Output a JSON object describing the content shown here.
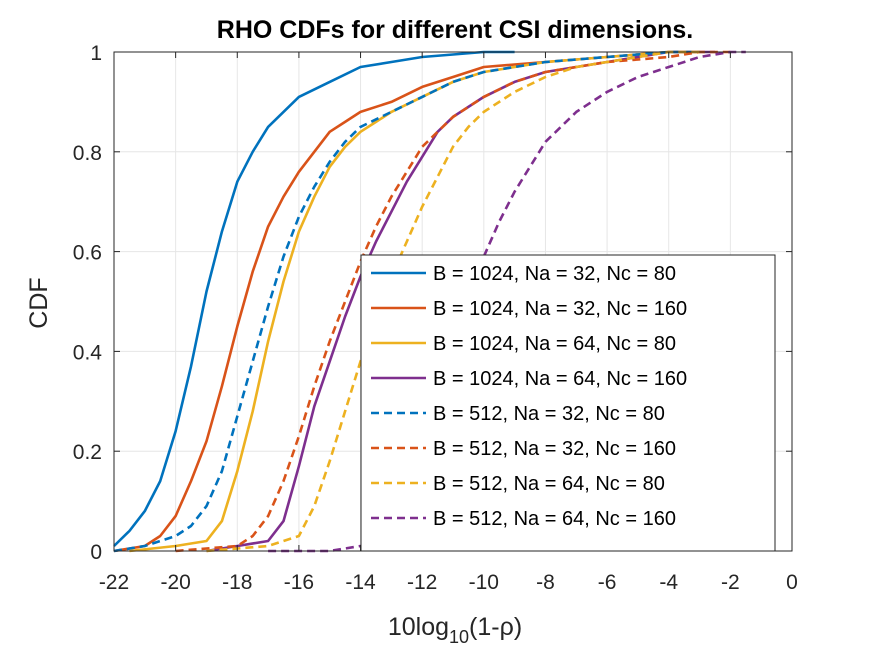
{
  "chart_data": {
    "type": "line",
    "title": "RHO CDFs for different CSI dimensions.",
    "xlabel": {
      "prefix": "10log",
      "sub": "10",
      "suffix": "(1-ρ)"
    },
    "ylabel": "CDF",
    "xlim": [
      -22,
      0
    ],
    "ylim": [
      0,
      1
    ],
    "xticks": [
      -22,
      -20,
      -18,
      -16,
      -14,
      -12,
      -10,
      -8,
      -6,
      -4,
      -2,
      0
    ],
    "xtick_labels": [
      "-22",
      "-20",
      "-18",
      "-16",
      "-14",
      "-12",
      "-10",
      "-8",
      "-6",
      "-4",
      "-2",
      "0"
    ],
    "yticks": [
      0,
      0.2,
      0.4,
      0.6,
      0.8,
      1
    ],
    "ytick_labels": [
      "0",
      "0.2",
      "0.4",
      "0.6",
      "0.8",
      "1"
    ],
    "grid": true,
    "legend_position": "center-right",
    "series": [
      {
        "name": "B = 1024, Na = 32, Nc = 80",
        "color": "#0072BD",
        "dash": "solid",
        "points": [
          [
            -22,
            0.01
          ],
          [
            -21.5,
            0.04
          ],
          [
            -21,
            0.08
          ],
          [
            -20.5,
            0.14
          ],
          [
            -20,
            0.24
          ],
          [
            -19.5,
            0.37
          ],
          [
            -19,
            0.52
          ],
          [
            -18.5,
            0.64
          ],
          [
            -18,
            0.74
          ],
          [
            -17.5,
            0.8
          ],
          [
            -17,
            0.85
          ],
          [
            -16.5,
            0.88
          ],
          [
            -16,
            0.91
          ],
          [
            -15,
            0.94
          ],
          [
            -14,
            0.97
          ],
          [
            -13,
            0.98
          ],
          [
            -12,
            0.99
          ],
          [
            -10,
            1.0
          ],
          [
            -9,
            1.0
          ]
        ]
      },
      {
        "name": "B = 1024, Na = 32, Nc = 160",
        "color": "#D95319",
        "dash": "solid",
        "points": [
          [
            -22,
            0.0
          ],
          [
            -21,
            0.01
          ],
          [
            -20.5,
            0.03
          ],
          [
            -20,
            0.07
          ],
          [
            -19.5,
            0.14
          ],
          [
            -19,
            0.22
          ],
          [
            -18.5,
            0.33
          ],
          [
            -18,
            0.45
          ],
          [
            -17.5,
            0.56
          ],
          [
            -17,
            0.65
          ],
          [
            -16.5,
            0.71
          ],
          [
            -16,
            0.76
          ],
          [
            -15.5,
            0.8
          ],
          [
            -15,
            0.84
          ],
          [
            -14.5,
            0.86
          ],
          [
            -14,
            0.88
          ],
          [
            -13,
            0.9
          ],
          [
            -12,
            0.93
          ],
          [
            -11,
            0.95
          ],
          [
            -10,
            0.97
          ],
          [
            -8,
            0.98
          ],
          [
            -6,
            0.99
          ],
          [
            -4,
            1.0
          ],
          [
            -3,
            1.0
          ]
        ]
      },
      {
        "name": "B = 1024, Na = 64, Nc = 80",
        "color": "#EDB120",
        "dash": "solid",
        "points": [
          [
            -21.5,
            0.0
          ],
          [
            -20,
            0.01
          ],
          [
            -19,
            0.02
          ],
          [
            -18.5,
            0.06
          ],
          [
            -18,
            0.16
          ],
          [
            -17.5,
            0.28
          ],
          [
            -17,
            0.42
          ],
          [
            -16.5,
            0.54
          ],
          [
            -16,
            0.64
          ],
          [
            -15.5,
            0.71
          ],
          [
            -15,
            0.77
          ],
          [
            -14.5,
            0.81
          ],
          [
            -14,
            0.84
          ],
          [
            -13.5,
            0.86
          ],
          [
            -13,
            0.88
          ],
          [
            -12,
            0.91
          ],
          [
            -11,
            0.94
          ],
          [
            -10,
            0.96
          ],
          [
            -8,
            0.98
          ],
          [
            -6,
            0.99
          ],
          [
            -4,
            1.0
          ],
          [
            -3,
            1.0
          ]
        ]
      },
      {
        "name": "B = 1024, Na = 64, Nc = 160",
        "color": "#7E2F8E",
        "dash": "solid",
        "points": [
          [
            -19,
            0.0
          ],
          [
            -18,
            0.01
          ],
          [
            -17,
            0.02
          ],
          [
            -16.5,
            0.06
          ],
          [
            -16,
            0.17
          ],
          [
            -15.5,
            0.29
          ],
          [
            -15,
            0.38
          ],
          [
            -14.5,
            0.47
          ],
          [
            -14,
            0.55
          ],
          [
            -13.5,
            0.62
          ],
          [
            -13,
            0.68
          ],
          [
            -12.5,
            0.74
          ],
          [
            -12,
            0.79
          ],
          [
            -11.5,
            0.84
          ],
          [
            -11,
            0.87
          ],
          [
            -10.5,
            0.89
          ],
          [
            -10,
            0.91
          ],
          [
            -9,
            0.94
          ],
          [
            -8,
            0.96
          ],
          [
            -7,
            0.97
          ],
          [
            -6,
            0.98
          ],
          [
            -5,
            0.99
          ],
          [
            -4,
            1.0
          ],
          [
            -2.5,
            1.0
          ]
        ]
      },
      {
        "name": "B = 512, Na = 32, Nc = 80",
        "color": "#0072BD",
        "dash": "dashed",
        "points": [
          [
            -22,
            0.0
          ],
          [
            -21,
            0.01
          ],
          [
            -20,
            0.03
          ],
          [
            -19.5,
            0.05
          ],
          [
            -19,
            0.09
          ],
          [
            -18.5,
            0.16
          ],
          [
            -18,
            0.27
          ],
          [
            -17.5,
            0.38
          ],
          [
            -17,
            0.49
          ],
          [
            -16.5,
            0.59
          ],
          [
            -16,
            0.67
          ],
          [
            -15.5,
            0.73
          ],
          [
            -15,
            0.78
          ],
          [
            -14.5,
            0.82
          ],
          [
            -14,
            0.85
          ],
          [
            -13,
            0.88
          ],
          [
            -12,
            0.91
          ],
          [
            -11,
            0.94
          ],
          [
            -10,
            0.96
          ],
          [
            -8,
            0.98
          ],
          [
            -6,
            0.99
          ],
          [
            -4,
            1.0
          ],
          [
            -3,
            1.0
          ]
        ]
      },
      {
        "name": "B = 512, Na = 32, Nc = 160",
        "color": "#D95319",
        "dash": "dashed",
        "points": [
          [
            -20,
            0.0
          ],
          [
            -18,
            0.01
          ],
          [
            -17.5,
            0.03
          ],
          [
            -17,
            0.07
          ],
          [
            -16.5,
            0.14
          ],
          [
            -16,
            0.23
          ],
          [
            -15.5,
            0.33
          ],
          [
            -15,
            0.42
          ],
          [
            -14.5,
            0.5
          ],
          [
            -14,
            0.58
          ],
          [
            -13.5,
            0.65
          ],
          [
            -13,
            0.71
          ],
          [
            -12.5,
            0.76
          ],
          [
            -12,
            0.81
          ],
          [
            -11,
            0.87
          ],
          [
            -10,
            0.91
          ],
          [
            -9,
            0.94
          ],
          [
            -8,
            0.96
          ],
          [
            -6,
            0.98
          ],
          [
            -4,
            0.99
          ],
          [
            -3,
            1.0
          ],
          [
            -2,
            1.0
          ]
        ]
      },
      {
        "name": "B = 512, Na = 64, Nc = 80",
        "color": "#EDB120",
        "dash": "dashed",
        "points": [
          [
            -19,
            0.0
          ],
          [
            -17,
            0.01
          ],
          [
            -16,
            0.03
          ],
          [
            -15.5,
            0.09
          ],
          [
            -15,
            0.18
          ],
          [
            -14.5,
            0.28
          ],
          [
            -14,
            0.38
          ],
          [
            -13.5,
            0.47
          ],
          [
            -13,
            0.55
          ],
          [
            -12.5,
            0.62
          ],
          [
            -12,
            0.69
          ],
          [
            -11.5,
            0.75
          ],
          [
            -11,
            0.81
          ],
          [
            -10.5,
            0.85
          ],
          [
            -10,
            0.88
          ],
          [
            -9,
            0.92
          ],
          [
            -8,
            0.95
          ],
          [
            -7,
            0.97
          ],
          [
            -6,
            0.98
          ],
          [
            -5,
            0.99
          ],
          [
            -4,
            1.0
          ],
          [
            -3,
            1.0
          ]
        ]
      },
      {
        "name": "B = 512, Na = 64, Nc = 160",
        "color": "#7E2F8E",
        "dash": "dashed",
        "points": [
          [
            -17,
            0.0
          ],
          [
            -15,
            0.0
          ],
          [
            -14,
            0.01
          ],
          [
            -13.5,
            0.02
          ],
          [
            -13,
            0.05
          ],
          [
            -12.5,
            0.12
          ],
          [
            -12,
            0.22
          ],
          [
            -11.5,
            0.32
          ],
          [
            -11,
            0.42
          ],
          [
            -10.5,
            0.51
          ],
          [
            -10,
            0.59
          ],
          [
            -9.5,
            0.66
          ],
          [
            -9,
            0.72
          ],
          [
            -8.5,
            0.77
          ],
          [
            -8,
            0.82
          ],
          [
            -7,
            0.88
          ],
          [
            -6,
            0.92
          ],
          [
            -5,
            0.95
          ],
          [
            -4,
            0.97
          ],
          [
            -3,
            0.99
          ],
          [
            -2,
            1.0
          ],
          [
            -1.5,
            1.0
          ]
        ]
      }
    ]
  }
}
